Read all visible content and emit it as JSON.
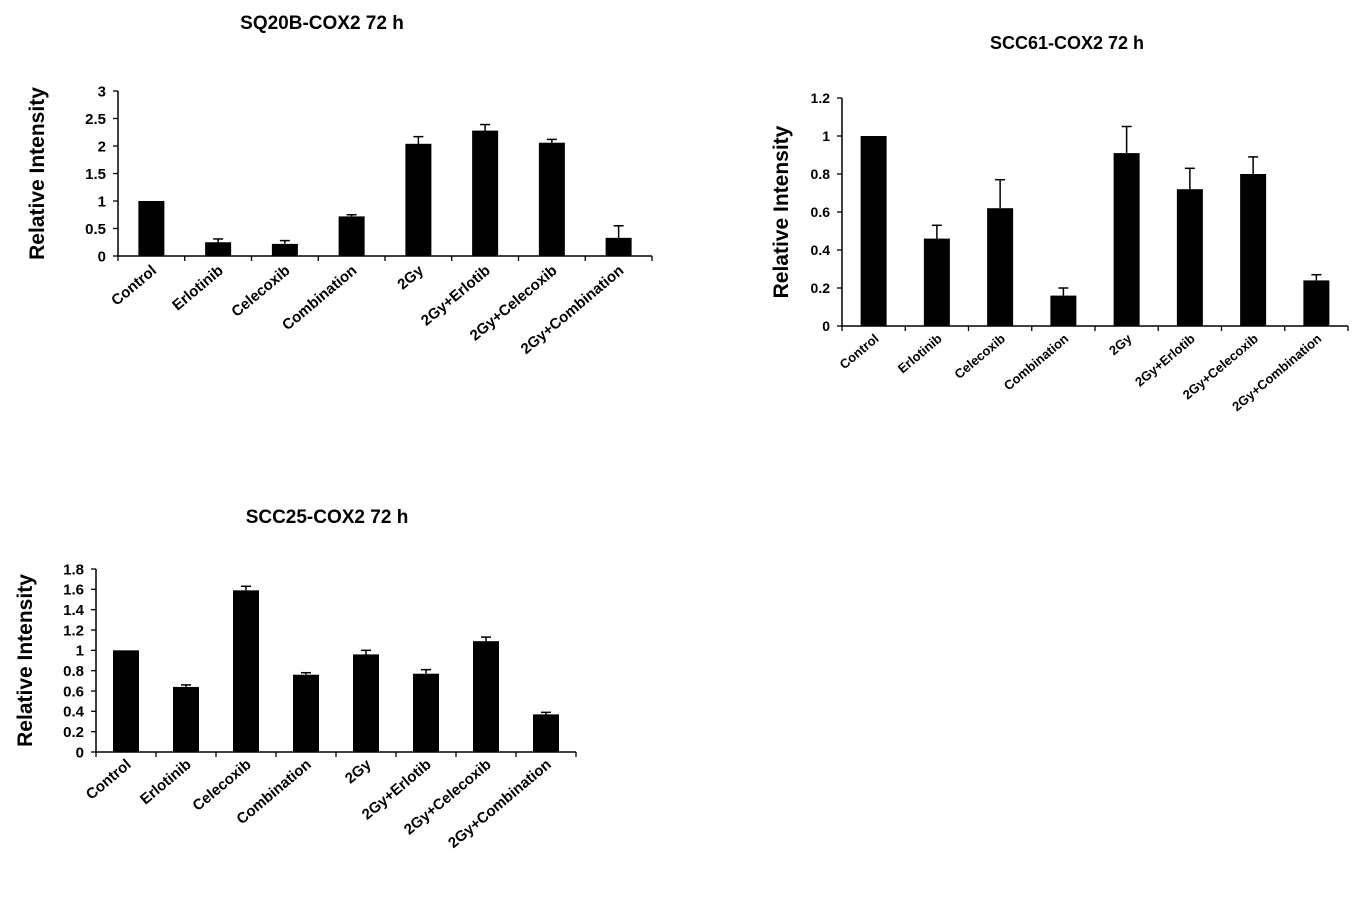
{
  "chart_data": [
    {
      "type": "bar",
      "title": "SQ20B-COX2 72 h",
      "ylabel": "Relative Intensity",
      "xlabel": "",
      "categories": [
        "Control",
        "Erlotinib",
        "Celecoxib",
        "Combination",
        "2Gy",
        "2Gy+Erlotib",
        "2Gy+Celecoxib",
        "2Gy+Combination"
      ],
      "values": [
        1.0,
        0.25,
        0.22,
        0.72,
        2.04,
        2.28,
        2.06,
        0.33
      ],
      "errors": [
        0,
        0.06,
        0.06,
        0.03,
        0.13,
        0.11,
        0.06,
        0.22
      ],
      "ylim": [
        0,
        3
      ],
      "yticks": [
        "0",
        "0.5",
        "1",
        "1.5",
        "2",
        "2.5",
        "3"
      ],
      "color": "#000000"
    },
    {
      "type": "bar",
      "title": "SCC61-COX2 72 h",
      "ylabel": "Relative Intensity",
      "xlabel": "",
      "categories": [
        "Control",
        "Erlotinib",
        "Celecoxib",
        "Combination",
        "2Gy",
        "2Gy+Erlotib",
        "2Gy+Celecoxib",
        "2Gy+Combination"
      ],
      "values": [
        1.0,
        0.46,
        0.62,
        0.16,
        0.91,
        0.72,
        0.8,
        0.24
      ],
      "errors": [
        0,
        0.07,
        0.15,
        0.04,
        0.14,
        0.11,
        0.09,
        0.03
      ],
      "ylim": [
        0,
        1.2
      ],
      "yticks": [
        "0",
        "0.2",
        "0.4",
        "0.6",
        "0.8",
        "1",
        "1.2"
      ],
      "color": "#000000"
    },
    {
      "type": "bar",
      "title": "SCC25-COX2  72 h",
      "ylabel": "Relative Intensity",
      "xlabel": "",
      "categories": [
        "Control",
        "Erlotinib",
        "Celecoxib",
        "Combination",
        "2Gy",
        "2Gy+Erlotib",
        "2Gy+Celecoxib",
        "2Gy+Combination"
      ],
      "values": [
        1.0,
        0.64,
        1.59,
        0.76,
        0.96,
        0.77,
        1.09,
        0.37
      ],
      "errors": [
        0,
        0.02,
        0.04,
        0.02,
        0.04,
        0.04,
        0.04,
        0.02
      ],
      "ylim": [
        0,
        1.8
      ],
      "yticks": [
        "0",
        "0.2",
        "0.4",
        "0.6",
        "0.8",
        "1",
        "1.2",
        "1.4",
        "1.6",
        "1.8"
      ],
      "color": "#000000"
    }
  ]
}
